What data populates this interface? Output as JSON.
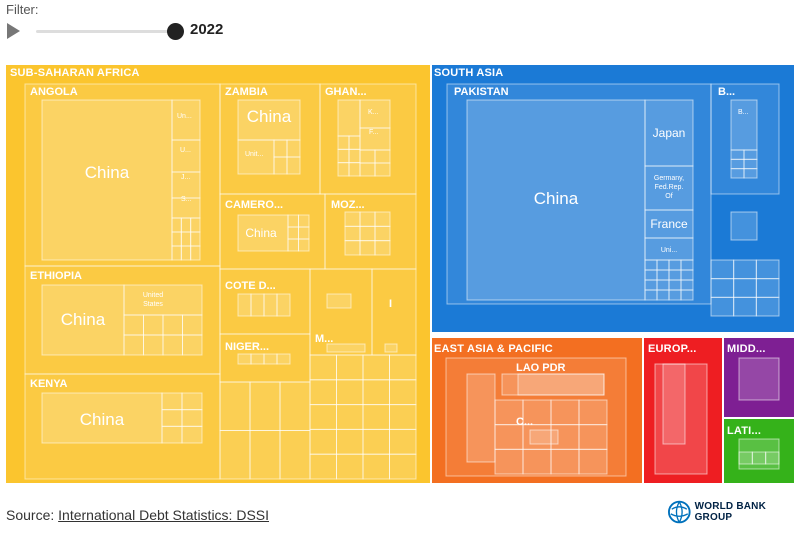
{
  "filter": {
    "label": "Filter:",
    "year": "2022"
  },
  "source": {
    "prefix": "Source: ",
    "link": "International Debt Statistics: DSSI"
  },
  "logo": {
    "text": "WORLD BANK GROUP"
  },
  "colors": {
    "ssa": "#fbc52e",
    "southAsia": "#1b7ad6",
    "eastAsia": "#f36f21",
    "europe": "#ee1e22",
    "middleEast": "#7e1f93",
    "latin": "#35b21a"
  },
  "chart_data": {
    "type": "treemap",
    "title": "",
    "regions": [
      {
        "name": "SUB-SAHARAN AFRICA",
        "countries": [
          {
            "name": "ANGOLA",
            "creditors": [
              "China",
              "Un...",
              "U...",
              "J...",
              "S..."
            ]
          },
          {
            "name": "ETHIOPIA",
            "creditors": [
              "China",
              "United States"
            ]
          },
          {
            "name": "KENYA",
            "creditors": [
              "China"
            ]
          },
          {
            "name": "ZAMBIA",
            "creditors": [
              "China",
              "Unit..."
            ]
          },
          {
            "name": "GHAN...",
            "creditors": [
              "K...",
              "F..."
            ]
          },
          {
            "name": "CAMERO...",
            "creditors": [
              "China"
            ]
          },
          {
            "name": "MOZ...",
            "creditors": []
          },
          {
            "name": "COTE D...",
            "creditors": []
          },
          {
            "name": "NIGER...",
            "creditors": []
          },
          {
            "name": "M...",
            "creditors": []
          },
          {
            "name": "I",
            "creditors": []
          }
        ]
      },
      {
        "name": "SOUTH ASIA",
        "countries": [
          {
            "name": "PAKISTAN",
            "creditors": [
              "China",
              "Japan",
              "Germany, Fed.Rep. Of",
              "France",
              "Uni..."
            ]
          },
          {
            "name": "B...",
            "creditors": [
              "B..."
            ]
          }
        ]
      },
      {
        "name": "EAST ASIA & PACIFIC",
        "countries": [
          {
            "name": "LAO PDR",
            "creditors": []
          },
          {
            "name": "C...",
            "creditors": []
          }
        ]
      },
      {
        "name": "EUROP...",
        "countries": []
      },
      {
        "name": "MIDD...",
        "countries": []
      },
      {
        "name": "LATI...",
        "countries": []
      }
    ]
  }
}
